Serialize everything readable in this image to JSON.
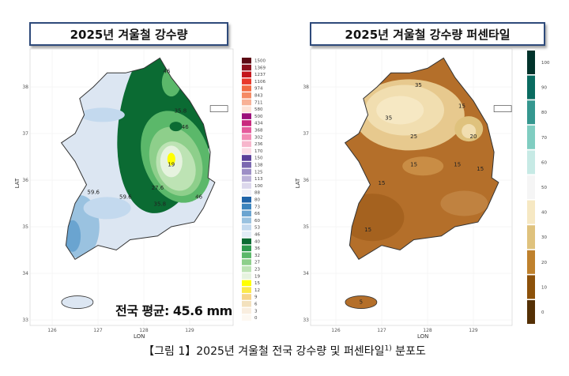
{
  "left_panel": {
    "title": "2025년 겨울철 강수량",
    "average_text": "전국 평균: 45.6 mm",
    "axis": {
      "xlabel": "LON",
      "ylabel": "LAT",
      "x_ticks": [
        "126",
        "127",
        "128",
        "129"
      ],
      "y_ticks": [
        "33",
        "34",
        "35",
        "36",
        "37",
        "38"
      ]
    },
    "contour_labels": [
      "46",
      "35.8",
      "46",
      "19",
      "27.6",
      "59.6",
      "59.6",
      "35.8",
      "46"
    ],
    "legend": {
      "labels": [
        "1500",
        "1369",
        "1237",
        "1106",
        "974",
        "843",
        "711",
        "580",
        "500",
        "434",
        "368",
        "302",
        "236",
        "170",
        "150",
        "138",
        "125",
        "113",
        "100",
        "88",
        "80",
        "73",
        "66",
        "60",
        "53",
        "46",
        "40",
        "36",
        "32",
        "27",
        "23",
        "19",
        "15",
        "12",
        "9",
        "6",
        "3",
        "0"
      ],
      "colors": [
        "#5c0a14",
        "#8b0f1c",
        "#c4161c",
        "#e8392b",
        "#f26b43",
        "#f58a64",
        "#f8b196",
        "#fde3d8",
        "#9c0f7a",
        "#c9287e",
        "#e55a9c",
        "#f28cb5",
        "#f7b6cc",
        "#fbdbe5",
        "#5b3f99",
        "#7b68b0",
        "#9d8fc6",
        "#bcb3d9",
        "#dcd8ec",
        "#f1f0f7",
        "#1f63a8",
        "#3c84bd",
        "#6aa4d0",
        "#9ac2e0",
        "#c3d9ee",
        "#e2ecf6",
        "#0b6b33",
        "#2e9a4e",
        "#5bb86a",
        "#8ecf8b",
        "#bde3b4",
        "#e6f3df",
        "#ffff00",
        "#fbe94a",
        "#f6d58a",
        "#f3e1bd",
        "#f9eedf",
        "#fdf8f1"
      ]
    }
  },
  "right_panel": {
    "title": "2025년 겨울철 강수량 퍼센타일",
    "axis": {
      "xlabel": "LON",
      "ylabel": "LAT",
      "x_ticks": [
        "126",
        "127",
        "128",
        "129"
      ],
      "y_ticks": [
        "33",
        "34",
        "35",
        "36",
        "37",
        "38"
      ]
    },
    "contour_labels": [
      "35",
      "15",
      "35",
      "25",
      "20",
      "15",
      "15",
      "15",
      "15",
      "15",
      "5"
    ],
    "legend": {
      "labels": [
        "100",
        "90",
        "80",
        "70",
        "60",
        "50",
        "40",
        "30",
        "20",
        "10",
        "0"
      ],
      "colors": [
        "#01332b",
        "#0a6b60",
        "#35978f",
        "#80cdc1",
        "#c7eae5",
        "#f5f5f5",
        "#f6e8c3",
        "#dfc27d",
        "#bf812d",
        "#8c510a",
        "#543005"
      ]
    }
  },
  "caption": {
    "text": "【그림 1】2025년 겨울철 전국 강수량 및 퍼센타일",
    "footnote_mark": "1)",
    "suffix": " 분포도"
  }
}
